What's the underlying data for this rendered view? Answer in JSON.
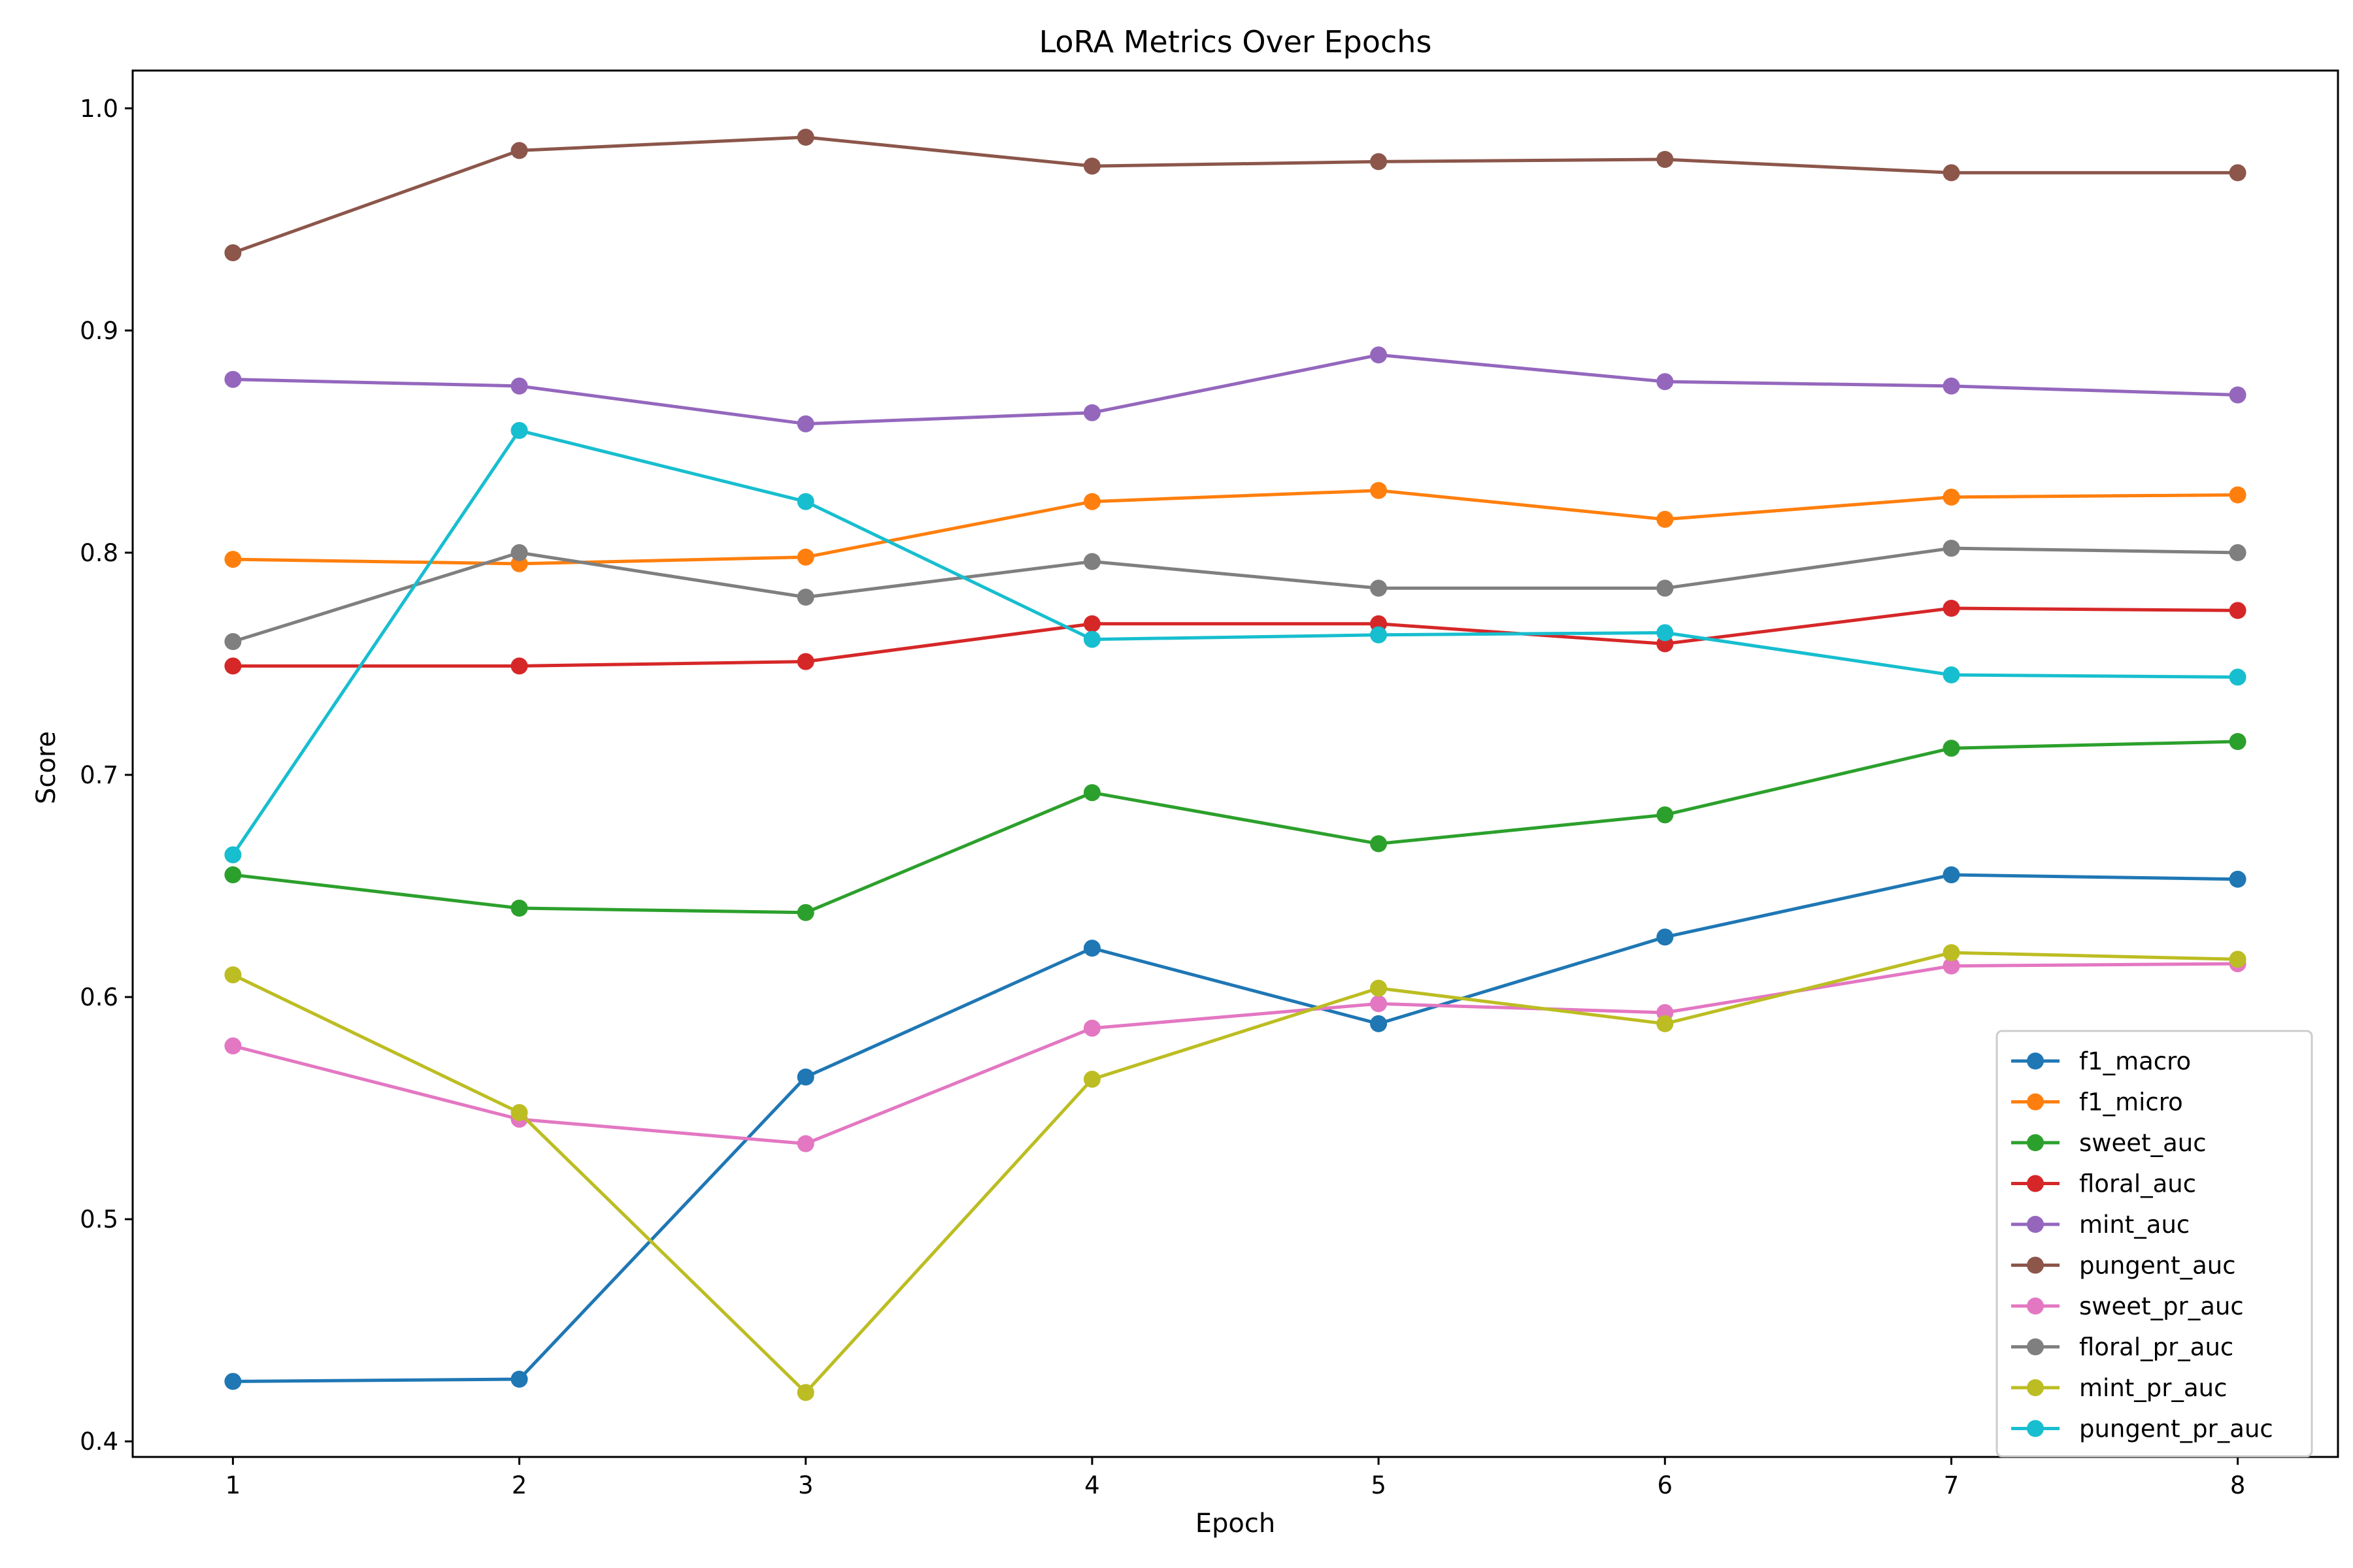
{
  "chart_data": {
    "type": "line",
    "title": "LoRA Metrics Over Epochs",
    "xlabel": "Epoch",
    "ylabel": "Score",
    "x": [
      1,
      2,
      3,
      4,
      5,
      6,
      7,
      8
    ],
    "xlim": [
      0.65,
      8.35
    ],
    "ylim": [
      0.393,
      1.017
    ],
    "yticks": [
      0.4,
      0.5,
      0.6,
      0.7,
      0.8,
      0.9,
      1.0
    ],
    "ytick_labels": [
      "0.4",
      "0.5",
      "0.6",
      "0.7",
      "0.8",
      "0.9",
      "1.0"
    ],
    "xticks": [
      1,
      2,
      3,
      4,
      5,
      6,
      7,
      8
    ],
    "xtick_labels": [
      "1",
      "2",
      "3",
      "4",
      "5",
      "6",
      "7",
      "8"
    ],
    "grid": false,
    "legend_position": "lower-right",
    "marker": "circle",
    "series": [
      {
        "name": "f1_macro",
        "color": "#1f77b4",
        "values": [
          0.427,
          0.428,
          0.564,
          0.622,
          0.588,
          0.627,
          0.655,
          0.653
        ]
      },
      {
        "name": "f1_micro",
        "color": "#ff7f0e",
        "values": [
          0.797,
          0.795,
          0.798,
          0.823,
          0.828,
          0.815,
          0.825,
          0.826
        ]
      },
      {
        "name": "sweet_auc",
        "color": "#2ca02c",
        "values": [
          0.655,
          0.64,
          0.638,
          0.692,
          0.669,
          0.682,
          0.712,
          0.715
        ]
      },
      {
        "name": "floral_auc",
        "color": "#d62728",
        "values": [
          0.749,
          0.749,
          0.751,
          0.768,
          0.768,
          0.759,
          0.775,
          0.774
        ]
      },
      {
        "name": "mint_auc",
        "color": "#9467bd",
        "values": [
          0.878,
          0.875,
          0.858,
          0.863,
          0.889,
          0.877,
          0.875,
          0.871
        ]
      },
      {
        "name": "pungent_auc",
        "color": "#8c564b",
        "values": [
          0.935,
          0.981,
          0.987,
          0.974,
          0.976,
          0.977,
          0.971,
          0.971
        ]
      },
      {
        "name": "sweet_pr_auc",
        "color": "#e377c2",
        "values": [
          0.578,
          0.545,
          0.534,
          0.586,
          0.597,
          0.593,
          0.614,
          0.615
        ]
      },
      {
        "name": "floral_pr_auc",
        "color": "#7f7f7f",
        "values": [
          0.76,
          0.8,
          0.78,
          0.796,
          0.784,
          0.784,
          0.802,
          0.8
        ]
      },
      {
        "name": "mint_pr_auc",
        "color": "#bcbd22",
        "values": [
          0.61,
          0.548,
          0.422,
          0.563,
          0.604,
          0.588,
          0.62,
          0.617
        ]
      },
      {
        "name": "pungent_pr_auc",
        "color": "#17becf",
        "values": [
          0.664,
          0.855,
          0.823,
          0.761,
          0.763,
          0.764,
          0.745,
          0.744
        ]
      }
    ]
  }
}
